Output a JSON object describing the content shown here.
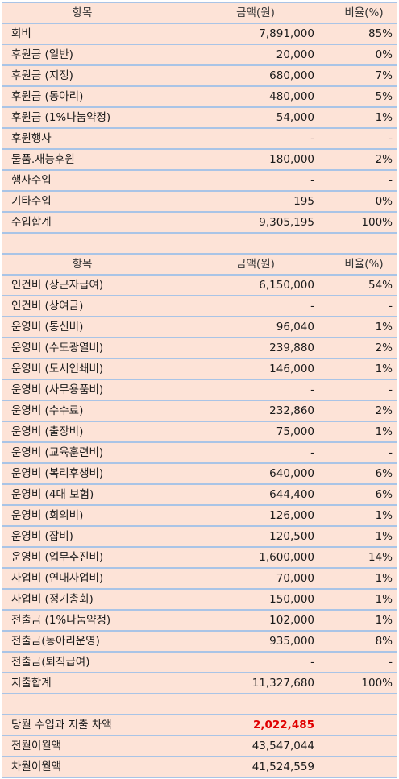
{
  "income": {
    "header": {
      "item": "항목",
      "amount": "금액(원)",
      "ratio": "비율(%)"
    },
    "rows": [
      {
        "item": "회비",
        "amount": "7,891,000",
        "ratio": "85%"
      },
      {
        "item": "후원금 (일반)",
        "amount": "20,000",
        "ratio": "0%"
      },
      {
        "item": "후원금 (지정)",
        "amount": "680,000",
        "ratio": "7%"
      },
      {
        "item": "후원금 (동아리)",
        "amount": "480,000",
        "ratio": "5%"
      },
      {
        "item": "후원금 (1%나눔약정)",
        "amount": "54,000",
        "ratio": "1%"
      },
      {
        "item": "후원행사",
        "amount": "-",
        "ratio": "-"
      },
      {
        "item": "물품.재능후원",
        "amount": "180,000",
        "ratio": "2%"
      },
      {
        "item": "행사수입",
        "amount": "-",
        "ratio": "-"
      },
      {
        "item": "기타수입",
        "amount": "195",
        "ratio": "0%"
      }
    ],
    "total": {
      "item": "수입합계",
      "amount": "9,305,195",
      "ratio": "100%"
    }
  },
  "expense": {
    "header": {
      "item": "항목",
      "amount": "금액(원)",
      "ratio": "비율(%)"
    },
    "rows": [
      {
        "item": "인건비 (상근자급여)",
        "amount": "6,150,000",
        "ratio": "54%"
      },
      {
        "item": "인건비 (상여금)",
        "amount": "-",
        "ratio": "-"
      },
      {
        "item": "운영비 (통신비)",
        "amount": "96,040",
        "ratio": "1%"
      },
      {
        "item": "운영비 (수도광열비)",
        "amount": "239,880",
        "ratio": "2%"
      },
      {
        "item": "운영비 (도서인쇄비)",
        "amount": "146,000",
        "ratio": "1%"
      },
      {
        "item": "운영비 (사무용품비)",
        "amount": "-",
        "ratio": "-"
      },
      {
        "item": "운영비 (수수료)",
        "amount": "232,860",
        "ratio": "2%"
      },
      {
        "item": "운영비 (출장비)",
        "amount": "75,000",
        "ratio": "1%"
      },
      {
        "item": "운영비 (교육훈련비)",
        "amount": "-",
        "ratio": "-"
      },
      {
        "item": "운영비 (복리후생비)",
        "amount": "640,000",
        "ratio": "6%"
      },
      {
        "item": "운영비 (4대 보험)",
        "amount": "644,400",
        "ratio": "6%"
      },
      {
        "item": "운영비 (회의비)",
        "amount": "126,000",
        "ratio": "1%"
      },
      {
        "item": "운영비 (잡비)",
        "amount": "120,500",
        "ratio": "1%"
      },
      {
        "item": "운영비 (업무추진비)",
        "amount": "1,600,000",
        "ratio": "14%"
      },
      {
        "item": "사업비 (연대사업비)",
        "amount": "70,000",
        "ratio": "1%"
      },
      {
        "item": "사업비 (정기총회)",
        "amount": "150,000",
        "ratio": "1%"
      },
      {
        "item": "전출금 (1%나눔약정)",
        "amount": "102,000",
        "ratio": "1%"
      },
      {
        "item": "전출금(동아리운영)",
        "amount": "935,000",
        "ratio": "8%"
      },
      {
        "item": "전출금(퇴직급여)",
        "amount": "-",
        "ratio": "-"
      }
    ],
    "total": {
      "item": "지출합계",
      "amount": "11,327,680",
      "ratio": "100%"
    }
  },
  "summary": [
    {
      "item": "당월 수입과 지출 차액",
      "amount": "2,022,485",
      "ratio": "",
      "highlight": true
    },
    {
      "item": "전월이월액",
      "amount": "43,547,044",
      "ratio": ""
    },
    {
      "item": "차월이월액",
      "amount": "41,524,559",
      "ratio": ""
    }
  ],
  "colors": {
    "row_background": "#fde3d7",
    "row_border": "#a9c4e6",
    "highlight_text": "#e00000"
  }
}
